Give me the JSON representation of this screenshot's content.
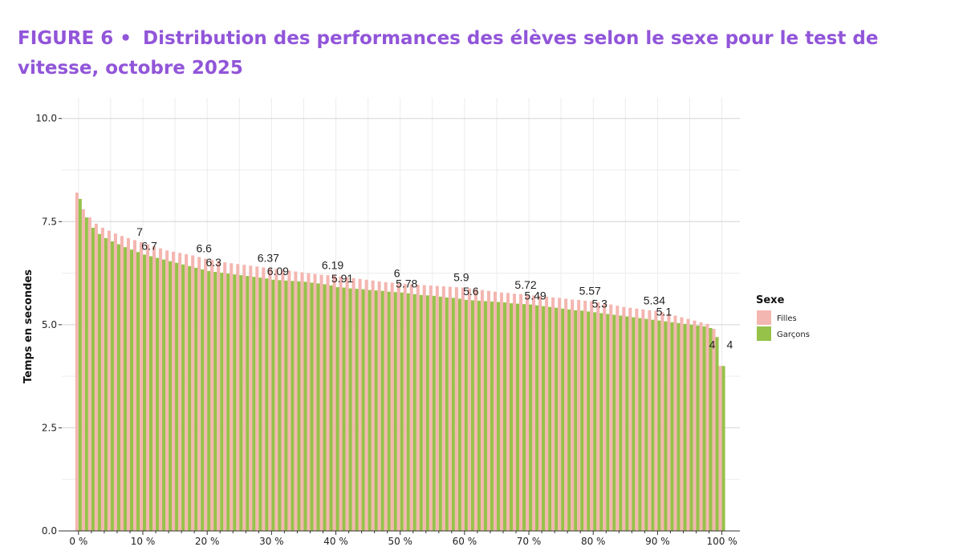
{
  "title_lead": "FIGURE 6 •",
  "title_text": "Distribution des performances des élèves selon le sexe pour le test de vitesse, octobre 2025",
  "chart_data": {
    "type": "bar",
    "ylabel": "Temps en secondes",
    "ylim": [
      0,
      10.5
    ],
    "y_ticks": [
      "0.0",
      "2.5",
      "5.0",
      "7.5",
      "10.0"
    ],
    "y_tick_values": [
      0,
      2.5,
      5,
      7.5,
      10
    ],
    "x_tick_labels": [
      "0 %",
      "10 %",
      "20 %",
      "30 %",
      "40 %",
      "50 %",
      "60 %",
      "70 %",
      "80 %",
      "90 %",
      "100 %"
    ],
    "x_tick_values": [
      0,
      10,
      20,
      30,
      40,
      50,
      60,
      70,
      80,
      90,
      100
    ],
    "grid": true,
    "legend": {
      "title": "Sexe",
      "position": "right"
    },
    "colors": {
      "filles": "#f4b6b0",
      "garcons": "#96c24a"
    },
    "series": [
      {
        "name": "Filles",
        "values": [
          8.2,
          7.8,
          7.6,
          7.45,
          7.35,
          7.28,
          7.21,
          7.15,
          7.1,
          7.05,
          7.0,
          6.95,
          6.9,
          6.85,
          6.8,
          6.77,
          6.74,
          6.71,
          6.68,
          6.64,
          6.6,
          6.57,
          6.54,
          6.51,
          6.49,
          6.47,
          6.45,
          6.43,
          6.41,
          6.39,
          6.37,
          6.35,
          6.33,
          6.31,
          6.29,
          6.27,
          6.25,
          6.23,
          6.21,
          6.2,
          6.19,
          6.17,
          6.15,
          6.13,
          6.11,
          6.09,
          6.07,
          6.05,
          6.03,
          6.02,
          6.0,
          5.99,
          5.98,
          5.97,
          5.96,
          5.95,
          5.94,
          5.93,
          5.92,
          5.91,
          5.9,
          5.88,
          5.86,
          5.84,
          5.82,
          5.8,
          5.78,
          5.77,
          5.75,
          5.74,
          5.72,
          5.71,
          5.7,
          5.68,
          5.66,
          5.65,
          5.63,
          5.61,
          5.6,
          5.58,
          5.57,
          5.54,
          5.51,
          5.49,
          5.46,
          5.43,
          5.41,
          5.39,
          5.37,
          5.35,
          5.34,
          5.3,
          5.26,
          5.22,
          5.18,
          5.14,
          5.1,
          5.06,
          5.02,
          4.9,
          4.0
        ]
      },
      {
        "name": "Garçons",
        "values": [
          8.05,
          7.6,
          7.35,
          7.2,
          7.1,
          7.02,
          6.95,
          6.88,
          6.82,
          6.76,
          6.7,
          6.66,
          6.62,
          6.58,
          6.54,
          6.5,
          6.46,
          6.42,
          6.38,
          6.34,
          6.3,
          6.28,
          6.26,
          6.24,
          6.22,
          6.2,
          6.18,
          6.16,
          6.14,
          6.12,
          6.09,
          6.08,
          6.07,
          6.06,
          6.05,
          6.04,
          6.02,
          6.0,
          5.98,
          5.95,
          5.91,
          5.9,
          5.88,
          5.87,
          5.86,
          5.84,
          5.83,
          5.82,
          5.8,
          5.79,
          5.78,
          5.76,
          5.74,
          5.72,
          5.71,
          5.7,
          5.68,
          5.66,
          5.65,
          5.63,
          5.6,
          5.59,
          5.58,
          5.57,
          5.56,
          5.55,
          5.54,
          5.52,
          5.51,
          5.5,
          5.49,
          5.47,
          5.45,
          5.43,
          5.41,
          5.39,
          5.37,
          5.35,
          5.34,
          5.32,
          5.3,
          5.28,
          5.26,
          5.24,
          5.22,
          5.2,
          5.18,
          5.16,
          5.14,
          5.12,
          5.1,
          5.08,
          5.06,
          5.04,
          5.02,
          5.0,
          4.98,
          4.96,
          4.92,
          4.7,
          4.0
        ]
      }
    ],
    "annotations_filles": [
      {
        "x": 10,
        "label": "7"
      },
      {
        "x": 20,
        "label": "6.6"
      },
      {
        "x": 30,
        "label": "6.37"
      },
      {
        "x": 40,
        "label": "6.19"
      },
      {
        "x": 50,
        "label": "6"
      },
      {
        "x": 60,
        "label": "5.9"
      },
      {
        "x": 70,
        "label": "5.72"
      },
      {
        "x": 80,
        "label": "5.57"
      },
      {
        "x": 90,
        "label": "5.34"
      },
      {
        "x": 100,
        "label": "4"
      }
    ],
    "annotations_garcons": [
      {
        "x": 10,
        "label": "6.7"
      },
      {
        "x": 20,
        "label": "6.3"
      },
      {
        "x": 30,
        "label": "6.09"
      },
      {
        "x": 40,
        "label": "5.91"
      },
      {
        "x": 50,
        "label": "5.78"
      },
      {
        "x": 60,
        "label": "5.6"
      },
      {
        "x": 70,
        "label": "5.49"
      },
      {
        "x": 80,
        "label": "5.3"
      },
      {
        "x": 90,
        "label": "5.1"
      },
      {
        "x": 100,
        "label": "4"
      }
    ]
  }
}
